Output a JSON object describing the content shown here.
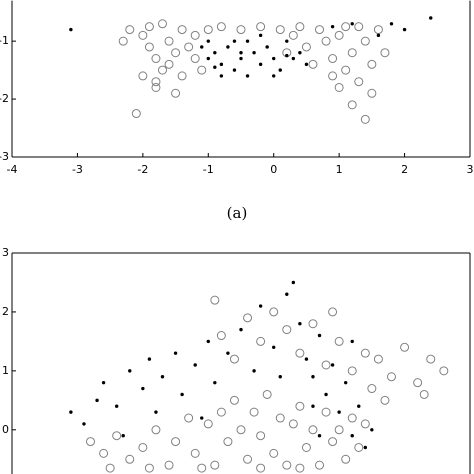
{
  "chart_data": [
    {
      "type": "scatter",
      "caption": "(a)",
      "xlim": [
        -4,
        3
      ],
      "xticks": [
        -4,
        -3,
        -2,
        -1,
        0,
        1,
        2,
        3
      ],
      "ylim": [
        -3,
        -0.3
      ],
      "yticks": [
        -3,
        -2,
        -1
      ],
      "series": [
        {
          "marker": "circle-open",
          "color": "#808080",
          "x": [
            -2.2,
            -2.0,
            -1.9,
            -1.8,
            -1.7,
            -2.0,
            -1.8,
            -2.1,
            -1.6,
            -1.5,
            -1.4,
            -1.3,
            -1.6,
            -1.2,
            -1.0,
            -0.8,
            -0.5,
            -0.2,
            0.1,
            -1.9,
            -1.7,
            -1.4,
            -1.2,
            -1.8,
            -1.5,
            0.3,
            0.5,
            0.7,
            0.8,
            0.9,
            1.0,
            1.1,
            1.2,
            1.3,
            1.4,
            1.5,
            1.6,
            1.3,
            1.0,
            1.2,
            1.4,
            1.5,
            0.6,
            0.4,
            1.7,
            0.9,
            1.1,
            -2.3,
            -1.1,
            0.2
          ],
          "values": [
            -0.8,
            -0.9,
            -1.1,
            -1.3,
            -1.5,
            -1.6,
            -1.8,
            -2.25,
            -1.0,
            -1.2,
            -0.8,
            -1.1,
            -1.4,
            -0.9,
            -0.8,
            -0.75,
            -0.8,
            -0.75,
            -0.8,
            -0.75,
            -0.7,
            -1.6,
            -1.3,
            -1.7,
            -1.9,
            -0.9,
            -1.1,
            -0.8,
            -1.0,
            -1.3,
            -0.9,
            -1.5,
            -1.2,
            -1.7,
            -1.0,
            -1.4,
            -0.8,
            -0.75,
            -1.8,
            -2.1,
            -2.35,
            -1.9,
            -1.4,
            -0.75,
            -1.2,
            -1.6,
            -0.75,
            -1.0,
            -1.5,
            -1.2
          ]
        },
        {
          "marker": "dot",
          "color": "#000000",
          "x": [
            -3.1,
            -1.1,
            -1.0,
            -0.9,
            -0.8,
            -0.7,
            -0.6,
            -0.5,
            -0.4,
            -0.3,
            -0.2,
            -0.1,
            0.0,
            0.1,
            0.2,
            0.3,
            0.4,
            -0.6,
            -0.8,
            -0.4,
            0.0,
            -1.0,
            -0.2,
            0.5,
            -0.5,
            -0.9,
            0.2,
            1.6,
            1.8,
            2.0,
            2.4,
            1.2,
            0.9
          ],
          "values": [
            -0.8,
            -1.1,
            -1.3,
            -1.2,
            -1.4,
            -1.1,
            -1.5,
            -1.3,
            -1.0,
            -1.2,
            -1.4,
            -1.1,
            -1.3,
            -1.5,
            -1.0,
            -1.3,
            -1.2,
            -1.0,
            -1.6,
            -1.6,
            -1.6,
            -1.0,
            -0.9,
            -1.4,
            -1.2,
            -1.45,
            -1.25,
            -0.9,
            -0.7,
            -0.8,
            -0.6,
            -0.7,
            -0.75
          ]
        }
      ]
    },
    {
      "type": "scatter",
      "xlim": [
        -4,
        3
      ],
      "ylim": [
        -0.75,
        3
      ],
      "yticks": [
        0,
        1,
        2,
        3
      ],
      "series": [
        {
          "marker": "circle-open",
          "color": "#808080",
          "x": [
            -2.8,
            -2.6,
            -2.4,
            -2.2,
            -2.0,
            -1.8,
            -1.6,
            -1.5,
            -1.3,
            -1.2,
            -1.0,
            -0.9,
            -0.8,
            -0.7,
            -0.6,
            -0.5,
            -0.4,
            -0.3,
            -0.2,
            -0.1,
            0.0,
            0.1,
            0.2,
            0.3,
            0.4,
            0.5,
            0.6,
            0.7,
            0.8,
            0.9,
            1.0,
            1.1,
            1.2,
            1.3,
            1.4,
            -2.5,
            -1.9,
            -1.1,
            -0.2,
            0.4,
            -0.8,
            -0.6,
            -0.4,
            -0.2,
            0.0,
            0.2,
            0.4,
            0.6,
            0.8,
            1.0,
            1.2,
            1.4,
            0.9,
            -0.9,
            1.6,
            1.8,
            2.0,
            2.2,
            2.4,
            2.6,
            1.7,
            2.3,
            1.5
          ],
          "values": [
            -0.2,
            -0.4,
            -0.1,
            -0.5,
            -0.3,
            0.0,
            -0.6,
            -0.2,
            0.2,
            -0.4,
            0.1,
            -0.6,
            0.3,
            -0.2,
            0.5,
            0.0,
            -0.5,
            0.3,
            -0.1,
            0.6,
            -0.4,
            0.2,
            -0.6,
            0.1,
            0.4,
            -0.3,
            0.0,
            -0.6,
            0.3,
            -0.2,
            0.0,
            -0.5,
            0.2,
            -0.3,
            0.1,
            -0.65,
            -0.65,
            -0.65,
            -0.65,
            -0.65,
            1.6,
            1.2,
            1.9,
            1.5,
            2.0,
            1.7,
            1.3,
            1.8,
            1.1,
            1.5,
            1.0,
            1.3,
            2.0,
            2.2,
            1.2,
            0.9,
            1.4,
            0.8,
            1.2,
            1.0,
            0.5,
            0.6,
            0.7
          ]
        },
        {
          "marker": "dot",
          "color": "#000000",
          "x": [
            -3.1,
            -2.9,
            -2.7,
            -2.6,
            -2.4,
            -2.2,
            -2.0,
            -1.9,
            -1.7,
            -1.5,
            -1.4,
            -1.2,
            -1.0,
            -0.9,
            -0.7,
            -0.5,
            -0.3,
            -0.2,
            0.0,
            0.2,
            0.3,
            0.4,
            0.5,
            0.6,
            0.7,
            0.8,
            0.9,
            1.0,
            1.1,
            1.2,
            1.3,
            1.4,
            1.5,
            -1.8,
            -1.1,
            0.1,
            0.6,
            1.2,
            -2.3,
            0.7
          ],
          "values": [
            0.3,
            0.1,
            0.5,
            0.8,
            0.4,
            1.0,
            0.7,
            1.2,
            0.9,
            1.3,
            0.6,
            1.1,
            1.5,
            0.8,
            1.3,
            1.7,
            1.0,
            2.1,
            1.4,
            2.3,
            2.5,
            1.8,
            1.2,
            0.9,
            1.6,
            0.6,
            1.1,
            0.3,
            0.8,
            -0.1,
            0.4,
            -0.3,
            0.0,
            0.3,
            0.2,
            0.9,
            0.4,
            1.5,
            -0.1,
            -0.1
          ]
        }
      ]
    }
  ]
}
